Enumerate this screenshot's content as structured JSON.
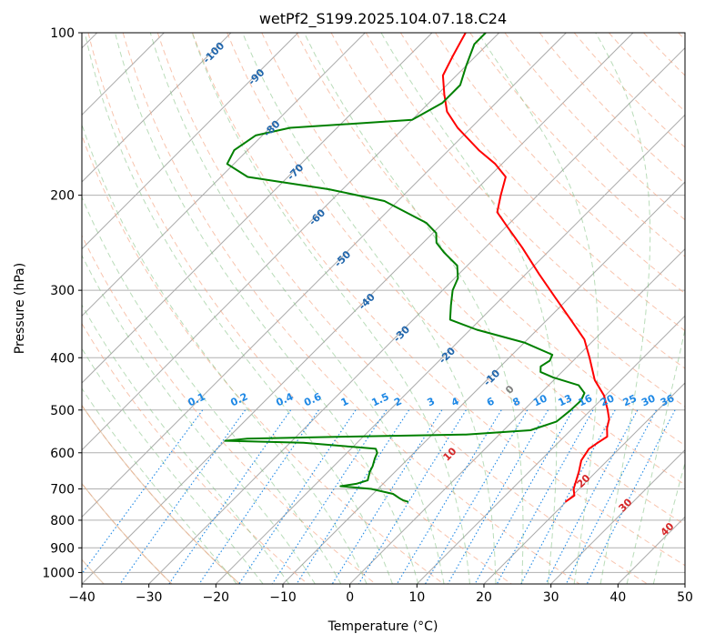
{
  "chart_data": {
    "type": "line",
    "title": "wetPf2_S199.2025.104.07.18.C24",
    "xlabel": "Temperature (°C)",
    "ylabel": "Pressure (hPa)",
    "xlim": [
      -40,
      50
    ],
    "ylim": [
      1050,
      100
    ],
    "y_scale": "log",
    "skew": "45-degree skew-T",
    "grid": true,
    "x_ticks": [
      "−40",
      "−30",
      "−20",
      "−10",
      "0",
      "10",
      "20",
      "30",
      "40",
      "50"
    ],
    "y_ticks": [
      "100",
      "200",
      "300",
      "400",
      "500",
      "600",
      "700",
      "800",
      "900",
      "1000"
    ],
    "series": [
      {
        "kind": "temperature",
        "color": "#ff0000",
        "points": [
          [
            740,
            19.9
          ],
          [
            720,
            20.3
          ],
          [
            700,
            19.2
          ],
          [
            650,
            17.4
          ],
          [
            620,
            16.1
          ],
          [
            590,
            15.5
          ],
          [
            575,
            15.9
          ],
          [
            560,
            16.4
          ],
          [
            540,
            15.1
          ],
          [
            520,
            14.1
          ],
          [
            500,
            12.5
          ],
          [
            470,
            9.8
          ],
          [
            440,
            6.1
          ],
          [
            420,
            4.1
          ],
          [
            400,
            2.0
          ],
          [
            370,
            -1.5
          ],
          [
            340,
            -6.5
          ],
          [
            310,
            -12.0
          ],
          [
            280,
            -18.0
          ],
          [
            250,
            -24.5
          ],
          [
            230,
            -29.5
          ],
          [
            215,
            -33.5
          ],
          [
            200,
            -35.5
          ],
          [
            185,
            -37.5
          ],
          [
            175,
            -41.0
          ],
          [
            165,
            -45.5
          ],
          [
            150,
            -52.0
          ],
          [
            140,
            -56.0
          ],
          [
            130,
            -59.0
          ],
          [
            120,
            -62.0
          ],
          [
            110,
            -63.5
          ],
          [
            100,
            -65.0
          ]
        ]
      },
      {
        "kind": "dewpoint",
        "color": "#008000",
        "points": [
          [
            740,
            -3.5
          ],
          [
            735,
            -4.5
          ],
          [
            730,
            -5.2
          ],
          [
            715,
            -7.0
          ],
          [
            700,
            -11.0
          ],
          [
            692,
            -16.0
          ],
          [
            685,
            -14.0
          ],
          [
            675,
            -12.8
          ],
          [
            665,
            -13.2
          ],
          [
            650,
            -13.8
          ],
          [
            635,
            -14.2
          ],
          [
            615,
            -15.0
          ],
          [
            600,
            -15.5
          ],
          [
            590,
            -16.3
          ],
          [
            585,
            -20.0
          ],
          [
            575,
            -28.0
          ],
          [
            570,
            -40.0
          ],
          [
            565,
            -37.0
          ],
          [
            560,
            -22.0
          ],
          [
            555,
            -5.0
          ],
          [
            545,
            4.0
          ],
          [
            525,
            6.6
          ],
          [
            500,
            7.0
          ],
          [
            480,
            7.1
          ],
          [
            465,
            6.5
          ],
          [
            450,
            4.5
          ],
          [
            435,
            -0.5
          ],
          [
            425,
            -3.2
          ],
          [
            415,
            -4.0
          ],
          [
            405,
            -3.5
          ],
          [
            395,
            -4.0
          ],
          [
            375,
            -10.0
          ],
          [
            355,
            -19.0
          ],
          [
            340,
            -24.5
          ],
          [
            320,
            -26.5
          ],
          [
            300,
            -28.5
          ],
          [
            285,
            -29.5
          ],
          [
            270,
            -31.5
          ],
          [
            255,
            -35.5
          ],
          [
            245,
            -38.0
          ],
          [
            235,
            -39.5
          ],
          [
            225,
            -42.5
          ],
          [
            205,
            -52.0
          ],
          [
            195,
            -62.0
          ],
          [
            185,
            -76.0
          ],
          [
            175,
            -81.0
          ],
          [
            165,
            -82.0
          ],
          [
            155,
            -81.0
          ],
          [
            150,
            -77.0
          ],
          [
            145,
            -60.0
          ],
          [
            135,
            -58.0
          ],
          [
            125,
            -58.0
          ],
          [
            115,
            -60.0
          ],
          [
            105,
            -62.0
          ],
          [
            100,
            -62.0
          ]
        ]
      }
    ],
    "dry_adiabats_c": [
      -100,
      -90,
      -80,
      -70,
      -60,
      -50,
      -40,
      -30,
      -20,
      -10
    ],
    "dry_adiabat_labels": [
      "-100",
      "-90",
      "-80",
      "-70",
      "-60",
      "-50",
      "-40",
      "-30",
      "-20",
      "-10"
    ],
    "moist_adiabats_c": [
      0,
      10,
      20,
      30,
      40
    ],
    "moist_adiabat_labels": [
      "0",
      "10",
      "20",
      "30",
      "40"
    ],
    "mixing_ratios": [
      0.1,
      0.2,
      0.4,
      0.6,
      1,
      1.5,
      2,
      3,
      4,
      6,
      8,
      10,
      13,
      16,
      20,
      25,
      30,
      36
    ],
    "mixing_ratio_labels": [
      "0.1",
      "0.2",
      "0.4",
      "0.6",
      "1",
      "1.5",
      "2",
      "3",
      "4",
      "6",
      "8",
      "10",
      "13",
      "16",
      "20",
      "25",
      "30",
      "36"
    ]
  }
}
